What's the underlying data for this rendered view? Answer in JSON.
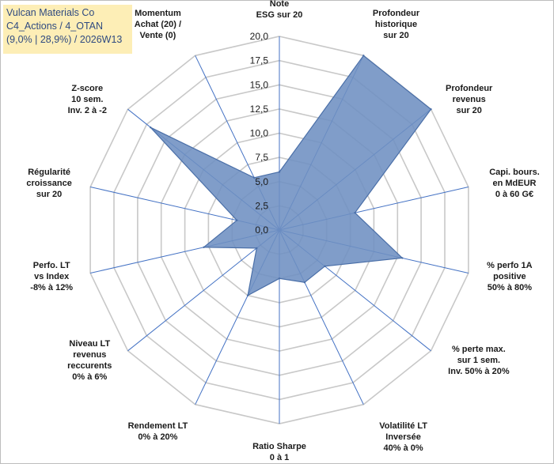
{
  "header": {
    "line1": "Vulcan Materials Co",
    "line2": "C4_Actions / 4_OTAN",
    "line3": "(9,0% | 28,9%) / 2026W13"
  },
  "chart_data": {
    "type": "radar",
    "title": "Vulcan Materials Co",
    "rlim": [
      0,
      20
    ],
    "ticks": [
      "0,0",
      "2,5",
      "5,0",
      "7,5",
      "10,0",
      "12,5",
      "15,0",
      "17,5",
      "20,0"
    ],
    "tick_values": [
      0,
      2.5,
      5,
      7.5,
      10,
      12.5,
      15,
      17.5,
      20
    ],
    "categories": [
      [
        "Note",
        "ESG sur 20"
      ],
      [
        "Profondeur",
        "historique",
        "sur 20"
      ],
      [
        "Profondeur",
        "revenus",
        "sur 20"
      ],
      [
        "Capi. bours.",
        "en MdEUR",
        "0 à 60 G€"
      ],
      [
        "% perfo 1A",
        "positive",
        "50% à 80%"
      ],
      [
        "% perte max.",
        "sur 1 sem.",
        "Inv. 50% à 20%"
      ],
      [
        "Volatilité LT",
        "Inversée",
        "40% à 0%"
      ],
      [
        "Ratio Sharpe",
        "0 à 1"
      ],
      [
        "Rendement LT",
        "0% à 20%"
      ],
      [
        "Niveau LT",
        "revenus",
        "reccurents",
        "0% à 6%"
      ],
      [
        "Perfo. LT",
        "vs Index",
        "-8% à 12%"
      ],
      [
        "Régularité",
        "croissance",
        "sur 20"
      ],
      [
        "Z-score",
        "10 sem.",
        "Inv. 2 à -2"
      ],
      [
        "Momentum",
        "Achat (20) /",
        "Vente (0)"
      ]
    ],
    "values": [
      6.0,
      20.0,
      20.0,
      8.0,
      13.0,
      6.0,
      6.0,
      5.0,
      7.5,
      3.0,
      8.0,
      4.5,
      17.0,
      6.0
    ],
    "series_color": "#6e8fc2",
    "line_color": "#4a6fa8",
    "grid_color": "#c8c8c8",
    "axis_color": "#4472c4"
  }
}
